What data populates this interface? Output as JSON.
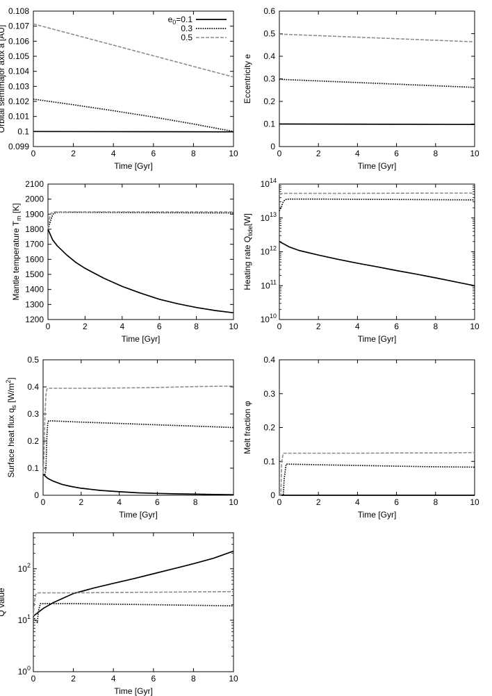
{
  "chart_data": [
    {
      "id": "a",
      "type": "line",
      "ylabel": "Orbital semimajor axix a [AU]",
      "xlabel": "Time [Gyr]",
      "xlim": [
        0,
        10
      ],
      "ylim": [
        0.099,
        0.108
      ],
      "yscale": "linear",
      "x_ticks": [
        "0",
        "2",
        "4",
        "6",
        "8",
        "10"
      ],
      "y_ticks": [
        "0.099",
        "0.1",
        "0.101",
        "0.102",
        "0.103",
        "0.104",
        "0.105",
        "0.106",
        "0.107",
        "0.108"
      ],
      "legend": {
        "position": "top-right",
        "title": "e",
        "title_sub": "0",
        "entries": [
          "=0.1",
          "0.3",
          "0.5"
        ]
      },
      "series": [
        {
          "name": "e0=0.1",
          "style": "solid",
          "x": [
            0,
            10
          ],
          "y": [
            0.1,
            0.09998
          ]
        },
        {
          "name": "0.3",
          "style": "dotted",
          "x": [
            0,
            2,
            4,
            6,
            8,
            10
          ],
          "y": [
            0.10215,
            0.10178,
            0.10138,
            0.10096,
            0.1005,
            0.1
          ]
        },
        {
          "name": "0.5",
          "style": "gray-dashed",
          "x": [
            0,
            10
          ],
          "y": [
            0.10715,
            0.10362
          ]
        }
      ]
    },
    {
      "id": "e",
      "type": "line",
      "ylabel": "Eccentricity e",
      "xlabel": "Time [Gyr]",
      "xlim": [
        0,
        10
      ],
      "ylim": [
        0,
        0.6
      ],
      "yscale": "linear",
      "x_ticks": [
        "0",
        "2",
        "4",
        "6",
        "8",
        "10"
      ],
      "y_ticks": [
        "0",
        "0.1",
        "0.2",
        "0.3",
        "0.4",
        "0.5",
        "0.6"
      ],
      "series": [
        {
          "name": "e0=0.1",
          "style": "solid",
          "x": [
            0,
            10
          ],
          "y": [
            0.1,
            0.098
          ]
        },
        {
          "name": "0.3",
          "style": "dotted",
          "x": [
            0,
            10
          ],
          "y": [
            0.298,
            0.262
          ]
        },
        {
          "name": "0.5",
          "style": "gray-dashed",
          "x": [
            0,
            10
          ],
          "y": [
            0.498,
            0.464
          ]
        }
      ]
    },
    {
      "id": "tm",
      "type": "line",
      "ylabel": "Mantle temperature T",
      "ylabel_sub": "m",
      "ylabel_suffix": " [K]",
      "xlabel": "Time [Gyr]",
      "xlim": [
        0,
        10
      ],
      "ylim": [
        1200,
        2100
      ],
      "yscale": "linear",
      "x_ticks": [
        "0",
        "2",
        "4",
        "6",
        "8",
        "10"
      ],
      "y_ticks": [
        "1200",
        "1300",
        "1400",
        "1500",
        "1600",
        "1700",
        "1800",
        "1900",
        "2000",
        "2100"
      ],
      "series": [
        {
          "name": "e0=0.1",
          "style": "solid",
          "x": [
            0,
            0.25,
            0.5,
            1,
            1.5,
            2,
            3,
            4,
            5,
            6,
            7,
            8,
            9,
            10
          ],
          "y": [
            1800,
            1730,
            1690,
            1630,
            1580,
            1540,
            1475,
            1420,
            1375,
            1335,
            1305,
            1280,
            1260,
            1245
          ]
        },
        {
          "name": "0.3",
          "style": "dotted",
          "x": [
            0,
            0.1,
            0.2,
            0.3,
            0.5,
            2,
            4,
            6,
            8,
            10
          ],
          "y": [
            1800,
            1840,
            1880,
            1905,
            1912,
            1912,
            1911,
            1910,
            1909,
            1908
          ]
        },
        {
          "name": "0.5",
          "style": "gray-dashed",
          "x": [
            0,
            0.05,
            0.15,
            0.3,
            2,
            4,
            6,
            8,
            10
          ],
          "y": [
            1800,
            1860,
            1905,
            1915,
            1915,
            1915,
            1915,
            1915,
            1915
          ]
        }
      ]
    },
    {
      "id": "qtide",
      "type": "line",
      "ylabel": "Heating rate Q",
      "ylabel_sub": "tide",
      "ylabel_suffix": "[W]",
      "xlabel": "Time [Gyr]",
      "xlim": [
        0,
        10
      ],
      "ylim": [
        10000000000.0,
        100000000000000.0
      ],
      "yscale": "log",
      "x_ticks": [
        "0",
        "2",
        "4",
        "6",
        "8",
        "10"
      ],
      "y_ticks": [
        {
          "base": "10",
          "exp": "10",
          "value": 10000000000.0
        },
        {
          "base": "10",
          "exp": "11",
          "value": 100000000000.0
        },
        {
          "base": "10",
          "exp": "12",
          "value": 1000000000000.0
        },
        {
          "base": "10",
          "exp": "13",
          "value": 10000000000000.0
        },
        {
          "base": "10",
          "exp": "14",
          "value": 100000000000000.0
        }
      ],
      "series": [
        {
          "name": "e0=0.1",
          "style": "solid",
          "x": [
            0,
            0.5,
            1,
            2,
            3,
            4,
            5,
            6,
            7,
            8,
            9,
            10
          ],
          "y": [
            2000000000000.0,
            1400000000000.0,
            1100000000000.0,
            800000000000.0,
            600000000000.0,
            460000000000.0,
            360000000000.0,
            280000000000.0,
            220000000000.0,
            170000000000.0,
            130000000000.0,
            100000000000.0
          ]
        },
        {
          "name": "0.3",
          "style": "dotted",
          "x": [
            0,
            0.1,
            0.2,
            0.3,
            0.5,
            2,
            4,
            6,
            8,
            10
          ],
          "y": [
            16000000000000.0,
            21000000000000.0,
            30000000000000.0,
            35000000000000.0,
            36000000000000.0,
            36000000000000.0,
            35500000000000.0,
            35000000000000.0,
            34500000000000.0,
            34000000000000.0
          ]
        },
        {
          "name": "0.5",
          "style": "gray-dashed",
          "x": [
            0,
            0.1,
            0.3,
            2,
            4,
            6,
            8,
            10
          ],
          "y": [
            50000000000000.0,
            52000000000000.0,
            53000000000000.0,
            53000000000000.0,
            53000000000000.0,
            53500000000000.0,
            54000000000000.0,
            54000000000000.0
          ]
        }
      ]
    },
    {
      "id": "qs",
      "type": "line",
      "ylabel": "Surface heat flux q",
      "ylabel_sub": "s",
      "ylabel_mid": " [W/m",
      "ylabel_sup": "2",
      "ylabel_suffix": "]",
      "xlabel": "Time [Gyr]",
      "xlim": [
        0,
        10
      ],
      "ylim": [
        0,
        0.5
      ],
      "yscale": "linear",
      "x_ticks": [
        "0",
        "2",
        "4",
        "6",
        "8",
        "10"
      ],
      "y_ticks": [
        "0",
        "0.1",
        "0.2",
        "0.3",
        "0.4",
        "0.5"
      ],
      "series": [
        {
          "name": "e0=0.1",
          "style": "solid",
          "x": [
            0,
            0.25,
            0.5,
            1,
            1.5,
            2,
            3,
            4,
            5,
            6,
            7,
            8,
            9,
            10
          ],
          "y": [
            0.078,
            0.062,
            0.053,
            0.04,
            0.032,
            0.026,
            0.018,
            0.013,
            0.009,
            0.007,
            0.005,
            0.004,
            0.003,
            0.002
          ]
        },
        {
          "name": "0.3",
          "style": "dotted",
          "x": [
            0,
            0.1,
            0.15,
            0.2,
            0.25,
            0.3,
            2,
            4,
            6,
            8,
            10
          ],
          "y": [
            0.078,
            0.075,
            0.1,
            0.22,
            0.27,
            0.275,
            0.27,
            0.265,
            0.26,
            0.255,
            0.25
          ]
        },
        {
          "name": "0.5",
          "style": "gray-dashed",
          "x": [
            0,
            0.05,
            0.1,
            0.15,
            0.2,
            0.25,
            2,
            4,
            6,
            8,
            10
          ],
          "y": [
            0.078,
            0.15,
            0.3,
            0.37,
            0.392,
            0.395,
            0.395,
            0.396,
            0.398,
            0.401,
            0.403
          ]
        }
      ]
    },
    {
      "id": "phi",
      "type": "line",
      "ylabel": "Melt fraction φ",
      "xlabel": "Time [Gyr]",
      "xlim": [
        0,
        10
      ],
      "ylim": [
        0,
        0.4
      ],
      "yscale": "linear",
      "x_ticks": [
        "0",
        "2",
        "4",
        "6",
        "8",
        "10"
      ],
      "y_ticks": [
        "0",
        "0.1",
        "0.2",
        "0.3",
        "0.4"
      ],
      "series": [
        {
          "name": "e0=0.1",
          "style": "solid",
          "x": [
            0,
            10
          ],
          "y": [
            0,
            0
          ]
        },
        {
          "name": "0.3",
          "style": "dotted",
          "x": [
            0,
            0.2,
            0.25,
            0.35,
            2,
            4,
            6,
            8,
            10
          ],
          "y": [
            0,
            0,
            0.05,
            0.092,
            0.09,
            0.088,
            0.086,
            0.084,
            0.083
          ]
        },
        {
          "name": "0.5",
          "style": "gray-dashed",
          "x": [
            0,
            0.08,
            0.12,
            0.2,
            2,
            4,
            6,
            8,
            10
          ],
          "y": [
            0,
            0,
            0.1,
            0.124,
            0.124,
            0.124,
            0.125,
            0.125,
            0.126
          ]
        }
      ]
    },
    {
      "id": "qvalue",
      "type": "line",
      "ylabel": "Q value",
      "xlabel": "Time [Gyr]",
      "xlim": [
        0,
        10
      ],
      "ylim": [
        1,
        500
      ],
      "yscale": "log",
      "x_ticks": [
        "0",
        "2",
        "4",
        "6",
        "8",
        "10"
      ],
      "y_ticks": [
        {
          "base": "10",
          "exp": "0",
          "value": 1
        },
        {
          "base": "10",
          "exp": "1",
          "value": 10
        },
        {
          "base": "10",
          "exp": "2",
          "value": 100
        }
      ],
      "series": [
        {
          "name": "e0=0.1",
          "style": "solid",
          "x": [
            0,
            0.5,
            1,
            2,
            3,
            4,
            5,
            6,
            7,
            8,
            9,
            10
          ],
          "y": [
            12,
            17,
            22,
            33,
            42,
            52,
            64,
            80,
            100,
            125,
            160,
            220
          ]
        },
        {
          "name": "0.3",
          "style": "dotted",
          "x": [
            0,
            0.1,
            0.2,
            0.25,
            0.35,
            2,
            4,
            6,
            8,
            10
          ],
          "y": [
            12,
            10,
            9,
            15,
            21,
            21,
            20.5,
            20,
            19.5,
            19
          ]
        },
        {
          "name": "0.5",
          "style": "gray-dashed",
          "x": [
            0,
            0.05,
            0.12,
            0.2,
            2,
            4,
            6,
            8,
            10
          ],
          "y": [
            12,
            22,
            32,
            34,
            34,
            34.5,
            35,
            35.5,
            36
          ]
        }
      ]
    }
  ]
}
